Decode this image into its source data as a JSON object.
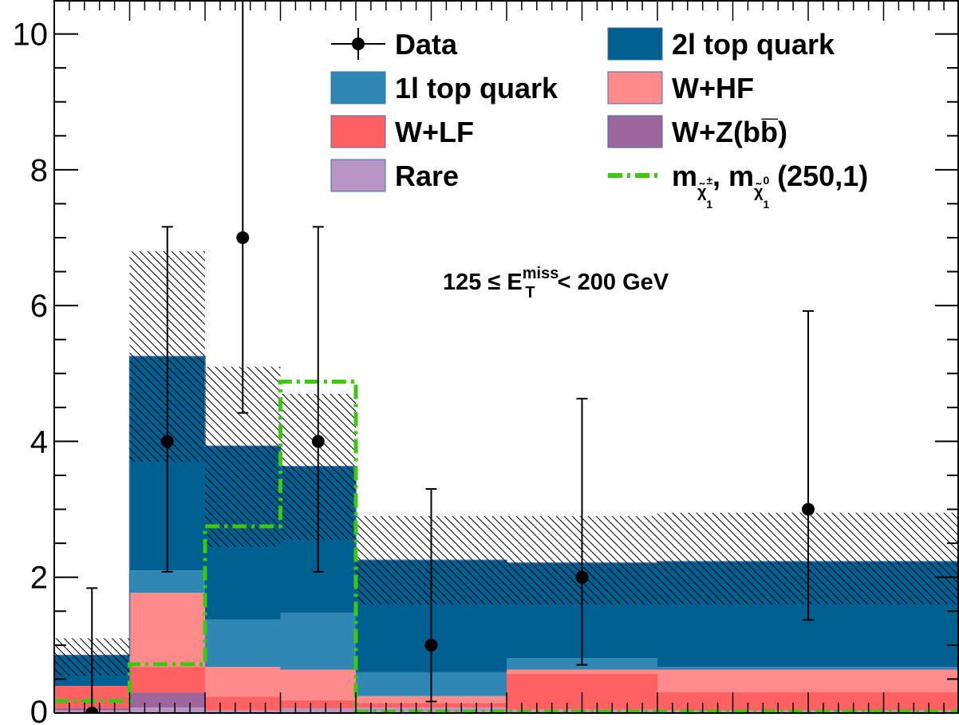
{
  "chart_data": {
    "type": "bar",
    "stacked": true,
    "ylim": [
      0,
      10.5
    ],
    "y_ticks": [
      "0",
      "2",
      "4",
      "6",
      "8",
      "10"
    ],
    "bin_edges": [
      0.0,
      0.5,
      1.0,
      1.5,
      2.0,
      3.0,
      4.0,
      6.0
    ],
    "colors": {
      "rare": "#b895c2",
      "wz": "#9c669c",
      "wlf": "#ff6262",
      "whf": "#ff8a8a",
      "top1l": "#3187b3",
      "top2l": "#005f91",
      "signal": "#3cc80f",
      "data": "#000000"
    },
    "series": [
      {
        "key": "rare",
        "name": "Rare",
        "values": [
          0.04,
          0.08,
          0.04,
          0.07,
          0.08,
          0.05,
          0.04
        ]
      },
      {
        "key": "wz",
        "name": "W+Z(bb̅)",
        "values": [
          0.03,
          0.22,
          0.0,
          0.0,
          0.0,
          0.0,
          0.0
        ]
      },
      {
        "key": "wlf",
        "name": "W+LF",
        "values": [
          0.33,
          0.38,
          0.2,
          0.12,
          0.07,
          0.53,
          0.27
        ]
      },
      {
        "key": "whf",
        "name": "W+HF",
        "values": [
          0.0,
          1.09,
          0.44,
          0.45,
          0.1,
          0.06,
          0.33
        ]
      },
      {
        "key": "top1l",
        "name": "1l top quark",
        "values": [
          0.0,
          0.33,
          0.7,
          0.84,
          0.35,
          0.17,
          0.04
        ]
      },
      {
        "key": "top2l",
        "name": "2l top quark",
        "values": [
          0.45,
          3.15,
          2.55,
          2.15,
          1.65,
          1.4,
          1.55
        ]
      }
    ],
    "uncertainty_band": {
      "low": [
        0.55,
        3.7,
        2.45,
        2.55,
        1.6,
        1.6,
        1.6
      ],
      "high": [
        1.1,
        6.8,
        5.1,
        4.7,
        2.9,
        2.9,
        2.95
      ]
    },
    "signal": {
      "name": "m",
      "values": [
        0.18,
        0.72,
        2.75,
        4.88,
        0.02,
        0.02,
        0.02
      ]
    },
    "data": {
      "name": "Data",
      "x": [
        0.25,
        0.75,
        1.25,
        1.75,
        2.5,
        3.5,
        5.0
      ],
      "y": [
        0,
        4,
        7,
        4,
        1,
        2,
        3
      ],
      "err_low": [
        0,
        1.92,
        2.58,
        1.92,
        0.83,
        1.29,
        1.63
      ],
      "err_high": [
        1.84,
        3.16,
        3.88,
        3.16,
        2.3,
        2.63,
        2.92
      ]
    },
    "legend": {
      "items": [
        {
          "key": "data",
          "label": "Data"
        },
        {
          "key": "top2l",
          "label": "2l top quark"
        },
        {
          "key": "top1l",
          "label": "1l top quark"
        },
        {
          "key": "whf",
          "label": "W+HF"
        },
        {
          "key": "wlf",
          "label": "W+LF"
        },
        {
          "key": "wz",
          "label": "W+Z(bb̅)"
        },
        {
          "key": "rare",
          "label": "Rare"
        },
        {
          "key": "signal",
          "label": "m"
        }
      ],
      "signal_pre": "m",
      "signal_sub1": "χ̃",
      "signal_sup1": "±",
      "signal_idx1": "1",
      "signal_mid": ", m",
      "signal_sub2": "χ̃",
      "signal_sup2": "0",
      "signal_idx2": "1",
      "signal_post": " (250,1)"
    },
    "annotation": {
      "pre": "125 ≤ E",
      "sub": "T",
      "sup": "miss",
      "post": " < 200 GeV"
    }
  }
}
